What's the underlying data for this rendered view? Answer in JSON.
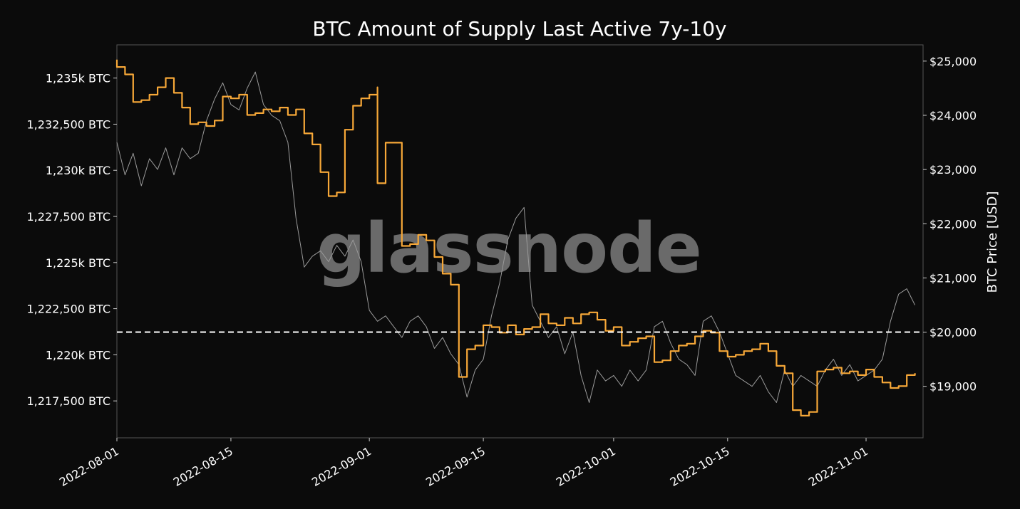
{
  "watermark": "glassnode",
  "chart_data": {
    "type": "line",
    "title": "BTC Amount of Supply Last Active 7y-10y",
    "xlabel": "",
    "ylabel_left": "",
    "ylabel_right": "BTC Price [USD]",
    "x_ticks": [
      "2022-08-01",
      "2022-08-15",
      "2022-09-01",
      "2022-09-15",
      "2022-10-01",
      "2022-10-15",
      "2022-11-01"
    ],
    "x_range": [
      "2022-08-01",
      "2022-11-08"
    ],
    "y_left": {
      "range": [
        1215500,
        1236800
      ],
      "ticks": [
        {
          "value": 1217500,
          "label": "1,217,500 BTC"
        },
        {
          "value": 1220000,
          "label": "1,220k BTC"
        },
        {
          "value": 1222500,
          "label": "1,222,500 BTC"
        },
        {
          "value": 1225000,
          "label": "1,225k BTC"
        },
        {
          "value": 1227500,
          "label": "1,227,500 BTC"
        },
        {
          "value": 1230000,
          "label": "1,230k BTC"
        },
        {
          "value": 1232500,
          "label": "1,232,500 BTC"
        },
        {
          "value": 1235000,
          "label": "1,235k BTC"
        }
      ]
    },
    "y_right": {
      "range": [
        18050,
        25300
      ],
      "ticks": [
        {
          "value": 19000,
          "label": "$19,000"
        },
        {
          "value": 20000,
          "label": "$20,000"
        },
        {
          "value": 21000,
          "label": "$21,000"
        },
        {
          "value": 22000,
          "label": "$22,000"
        },
        {
          "value": 23000,
          "label": "$23,000"
        },
        {
          "value": 24000,
          "label": "$24,000"
        },
        {
          "value": 25000,
          "label": "$25,000"
        }
      ]
    },
    "reference_line": {
      "axis": "right",
      "value": 20000,
      "style": "dashed",
      "color": "#ffffff"
    },
    "series": [
      {
        "axis": "left",
        "color": "#f7a838",
        "step": true,
        "points": [
          [
            "2022-08-01",
            1236000
          ],
          [
            "2022-08-01",
            1235600
          ],
          [
            "2022-08-02",
            1235200
          ],
          [
            "2022-08-03",
            1233700
          ],
          [
            "2022-08-04",
            1233800
          ],
          [
            "2022-08-05",
            1234100
          ],
          [
            "2022-08-06",
            1234500
          ],
          [
            "2022-08-07",
            1235000
          ],
          [
            "2022-08-08",
            1234200
          ],
          [
            "2022-08-09",
            1233400
          ],
          [
            "2022-08-10",
            1232500
          ],
          [
            "2022-08-11",
            1232600
          ],
          [
            "2022-08-12",
            1232400
          ],
          [
            "2022-08-13",
            1232700
          ],
          [
            "2022-08-14",
            1234000
          ],
          [
            "2022-08-15",
            1233900
          ],
          [
            "2022-08-16",
            1234100
          ],
          [
            "2022-08-17",
            1233000
          ],
          [
            "2022-08-18",
            1233100
          ],
          [
            "2022-08-19",
            1233300
          ],
          [
            "2022-08-20",
            1233200
          ],
          [
            "2022-08-21",
            1233400
          ],
          [
            "2022-08-22",
            1233000
          ],
          [
            "2022-08-23",
            1233300
          ],
          [
            "2022-08-24",
            1232000
          ],
          [
            "2022-08-25",
            1231400
          ],
          [
            "2022-08-26",
            1229900
          ],
          [
            "2022-08-27",
            1228600
          ],
          [
            "2022-08-28",
            1228800
          ],
          [
            "2022-08-29",
            1232200
          ],
          [
            "2022-08-30",
            1233500
          ],
          [
            "2022-08-31",
            1233900
          ],
          [
            "2022-09-01",
            1234100
          ],
          [
            "2022-09-02",
            1234500
          ],
          [
            "2022-09-02",
            1229300
          ],
          [
            "2022-09-03",
            1231500
          ],
          [
            "2022-09-04",
            1231500
          ],
          [
            "2022-09-05",
            1225900
          ],
          [
            "2022-09-06",
            1226000
          ],
          [
            "2022-09-07",
            1226500
          ],
          [
            "2022-09-08",
            1226200
          ],
          [
            "2022-09-09",
            1225300
          ],
          [
            "2022-09-10",
            1224400
          ],
          [
            "2022-09-11",
            1223800
          ],
          [
            "2022-09-12",
            1220600
          ],
          [
            "2022-09-12",
            1218800
          ],
          [
            "2022-09-13",
            1220300
          ],
          [
            "2022-09-14",
            1220500
          ],
          [
            "2022-09-15",
            1221600
          ],
          [
            "2022-09-16",
            1221500
          ],
          [
            "2022-09-17",
            1221200
          ],
          [
            "2022-09-18",
            1221600
          ],
          [
            "2022-09-19",
            1221100
          ],
          [
            "2022-09-20",
            1221400
          ],
          [
            "2022-09-21",
            1221500
          ],
          [
            "2022-09-22",
            1222200
          ],
          [
            "2022-09-23",
            1221700
          ],
          [
            "2022-09-24",
            1221600
          ],
          [
            "2022-09-25",
            1222000
          ],
          [
            "2022-09-26",
            1221700
          ],
          [
            "2022-09-27",
            1222200
          ],
          [
            "2022-09-28",
            1222300
          ],
          [
            "2022-09-29",
            1221900
          ],
          [
            "2022-09-30",
            1221300
          ],
          [
            "2022-10-01",
            1221500
          ],
          [
            "2022-10-02",
            1220500
          ],
          [
            "2022-10-03",
            1220700
          ],
          [
            "2022-10-04",
            1220900
          ],
          [
            "2022-10-05",
            1221000
          ],
          [
            "2022-10-06",
            1219600
          ],
          [
            "2022-10-07",
            1219700
          ],
          [
            "2022-10-08",
            1220200
          ],
          [
            "2022-10-09",
            1220500
          ],
          [
            "2022-10-10",
            1220600
          ],
          [
            "2022-10-11",
            1221000
          ],
          [
            "2022-10-12",
            1221300
          ],
          [
            "2022-10-13",
            1221200
          ],
          [
            "2022-10-14",
            1220200
          ],
          [
            "2022-10-15",
            1219900
          ],
          [
            "2022-10-16",
            1220000
          ],
          [
            "2022-10-17",
            1220200
          ],
          [
            "2022-10-18",
            1220300
          ],
          [
            "2022-10-19",
            1220600
          ],
          [
            "2022-10-20",
            1220200
          ],
          [
            "2022-10-21",
            1219400
          ],
          [
            "2022-10-22",
            1219000
          ],
          [
            "2022-10-23",
            1217000
          ],
          [
            "2022-10-24",
            1216700
          ],
          [
            "2022-10-25",
            1216900
          ],
          [
            "2022-10-26",
            1219100
          ],
          [
            "2022-10-27",
            1219200
          ],
          [
            "2022-10-28",
            1219300
          ],
          [
            "2022-10-29",
            1219000
          ],
          [
            "2022-10-30",
            1219100
          ],
          [
            "2022-10-31",
            1218900
          ],
          [
            "2022-11-01",
            1219200
          ],
          [
            "2022-11-02",
            1218800
          ],
          [
            "2022-11-03",
            1218500
          ],
          [
            "2022-11-04",
            1218200
          ],
          [
            "2022-11-05",
            1218300
          ],
          [
            "2022-11-06",
            1218900
          ],
          [
            "2022-11-07",
            1219000
          ]
        ]
      },
      {
        "axis": "right",
        "color": "#9a9a9a",
        "points": [
          [
            "2022-08-01",
            23500
          ],
          [
            "2022-08-02",
            22900
          ],
          [
            "2022-08-03",
            23300
          ],
          [
            "2022-08-04",
            22700
          ],
          [
            "2022-08-05",
            23200
          ],
          [
            "2022-08-06",
            23000
          ],
          [
            "2022-08-07",
            23400
          ],
          [
            "2022-08-08",
            22900
          ],
          [
            "2022-08-09",
            23400
          ],
          [
            "2022-08-10",
            23200
          ],
          [
            "2022-08-11",
            23300
          ],
          [
            "2022-08-12",
            23900
          ],
          [
            "2022-08-13",
            24300
          ],
          [
            "2022-08-14",
            24600
          ],
          [
            "2022-08-15",
            24200
          ],
          [
            "2022-08-16",
            24100
          ],
          [
            "2022-08-17",
            24500
          ],
          [
            "2022-08-18",
            24800
          ],
          [
            "2022-08-19",
            24200
          ],
          [
            "2022-08-20",
            24000
          ],
          [
            "2022-08-21",
            23900
          ],
          [
            "2022-08-22",
            23500
          ],
          [
            "2022-08-23",
            22100
          ],
          [
            "2022-08-24",
            21200
          ],
          [
            "2022-08-25",
            21400
          ],
          [
            "2022-08-26",
            21500
          ],
          [
            "2022-08-27",
            21300
          ],
          [
            "2022-08-28",
            21600
          ],
          [
            "2022-08-29",
            21400
          ],
          [
            "2022-08-30",
            21700
          ],
          [
            "2022-08-31",
            21300
          ],
          [
            "2022-09-01",
            20400
          ],
          [
            "2022-09-02",
            20200
          ],
          [
            "2022-09-03",
            20300
          ],
          [
            "2022-09-04",
            20100
          ],
          [
            "2022-09-05",
            19900
          ],
          [
            "2022-09-06",
            20200
          ],
          [
            "2022-09-07",
            20300
          ],
          [
            "2022-09-08",
            20100
          ],
          [
            "2022-09-09",
            19700
          ],
          [
            "2022-09-10",
            19900
          ],
          [
            "2022-09-11",
            19600
          ],
          [
            "2022-09-12",
            19400
          ],
          [
            "2022-09-13",
            18800
          ],
          [
            "2022-09-14",
            19300
          ],
          [
            "2022-09-15",
            19500
          ],
          [
            "2022-09-16",
            20300
          ],
          [
            "2022-09-17",
            20900
          ],
          [
            "2022-09-18",
            21700
          ],
          [
            "2022-09-19",
            22100
          ],
          [
            "2022-09-20",
            22300
          ],
          [
            "2022-09-21",
            20500
          ],
          [
            "2022-09-22",
            20200
          ],
          [
            "2022-09-23",
            19900
          ],
          [
            "2022-09-24",
            20100
          ],
          [
            "2022-09-25",
            19600
          ],
          [
            "2022-09-26",
            20000
          ],
          [
            "2022-09-27",
            19200
          ],
          [
            "2022-09-28",
            18700
          ],
          [
            "2022-09-29",
            19300
          ],
          [
            "2022-09-30",
            19100
          ],
          [
            "2022-10-01",
            19200
          ],
          [
            "2022-10-02",
            19000
          ],
          [
            "2022-10-03",
            19300
          ],
          [
            "2022-10-04",
            19100
          ],
          [
            "2022-10-05",
            19300
          ],
          [
            "2022-10-06",
            20100
          ],
          [
            "2022-10-07",
            20200
          ],
          [
            "2022-10-08",
            19800
          ],
          [
            "2022-10-09",
            19500
          ],
          [
            "2022-10-10",
            19400
          ],
          [
            "2022-10-11",
            19200
          ],
          [
            "2022-10-12",
            20200
          ],
          [
            "2022-10-13",
            20300
          ],
          [
            "2022-10-14",
            20000
          ],
          [
            "2022-10-15",
            19600
          ],
          [
            "2022-10-16",
            19200
          ],
          [
            "2022-10-17",
            19100
          ],
          [
            "2022-10-18",
            19000
          ],
          [
            "2022-10-19",
            19200
          ],
          [
            "2022-10-20",
            18900
          ],
          [
            "2022-10-21",
            18700
          ],
          [
            "2022-10-22",
            19300
          ],
          [
            "2022-10-23",
            19000
          ],
          [
            "2022-10-24",
            19200
          ],
          [
            "2022-10-25",
            19100
          ],
          [
            "2022-10-26",
            19000
          ],
          [
            "2022-10-27",
            19300
          ],
          [
            "2022-10-28",
            19500
          ],
          [
            "2022-10-29",
            19200
          ],
          [
            "2022-10-30",
            19400
          ],
          [
            "2022-10-31",
            19100
          ],
          [
            "2022-11-01",
            19200
          ],
          [
            "2022-11-02",
            19300
          ],
          [
            "2022-11-03",
            19500
          ],
          [
            "2022-11-04",
            20200
          ],
          [
            "2022-11-05",
            20700
          ],
          [
            "2022-11-06",
            20800
          ],
          [
            "2022-11-07",
            20500
          ]
        ]
      }
    ]
  }
}
